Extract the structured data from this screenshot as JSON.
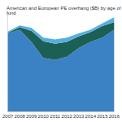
{
  "chart_data": {
    "type": "area",
    "title": "American and European PE overhang ($B) by age of fund",
    "categories": [
      "2007",
      "2008",
      "2009",
      "2010",
      "2011",
      "2012",
      "2013",
      "2014",
      "2015",
      "2016"
    ],
    "series": [
      {
        "color": "#3b82c4",
        "values": [
          635,
          665,
          565,
          435,
          420,
          445,
          515,
          565,
          600,
          665
        ]
      },
      {
        "color": "#1c5f55",
        "values": [
          5,
          20,
          90,
          135,
          130,
          120,
          95,
          80,
          95,
          60
        ]
      },
      {
        "color": "#55afe0",
        "values": [
          10,
          15,
          25,
          30,
          35,
          35,
          25,
          20,
          20,
          40
        ]
      }
    ],
    "ylim": [
      0,
      800
    ],
    "stacked": true,
    "grid": false,
    "tick_labels": "x"
  }
}
